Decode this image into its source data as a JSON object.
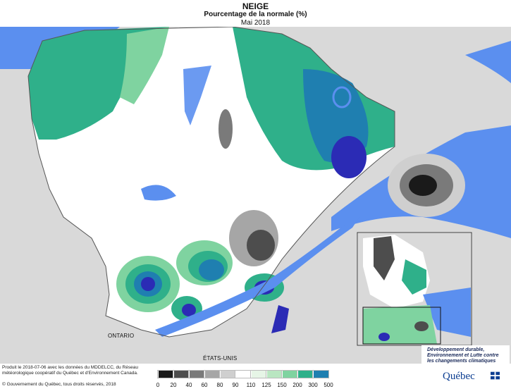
{
  "header": {
    "title": "NEIGE",
    "subtitle": "Pourcentage de la normale (%)",
    "date": "Mai 2018"
  },
  "map_labels": {
    "ontario": "ONTARIO",
    "etats_unis": "ÉTATS-UNIS"
  },
  "footer": {
    "credit_lines": "Produit le 2018-07-06 avec les données du MDDELCC, du Réseau météorologique coopératif du Québec et d'Environnement Canada.",
    "copyright": "© Gouvernement du Québec, tous droits réservés, 2018"
  },
  "legend": {
    "ticks": [
      "0",
      "20",
      "40",
      "60",
      "80",
      "90",
      "110",
      "125",
      "150",
      "200",
      "300",
      "500"
    ],
    "colors": [
      "#1a1a1a",
      "#4d4d4d",
      "#7a7a7a",
      "#a6a6a6",
      "#cfcfcf",
      "#ffffff",
      "#e6f5e6",
      "#b9e6c1",
      "#7fd3a0",
      "#2fb08a",
      "#1f7fb0",
      "#2b2bb5"
    ]
  },
  "logo": {
    "ministry": "Développement durable, Environnement et Lutte contre les changements climatiques",
    "brand": "Québec"
  },
  "colors": {
    "water": "#5b8fef",
    "land_outside": "#d9d9d9",
    "quebec_land": "#ffffff",
    "brand_blue": "#0b3d91"
  }
}
